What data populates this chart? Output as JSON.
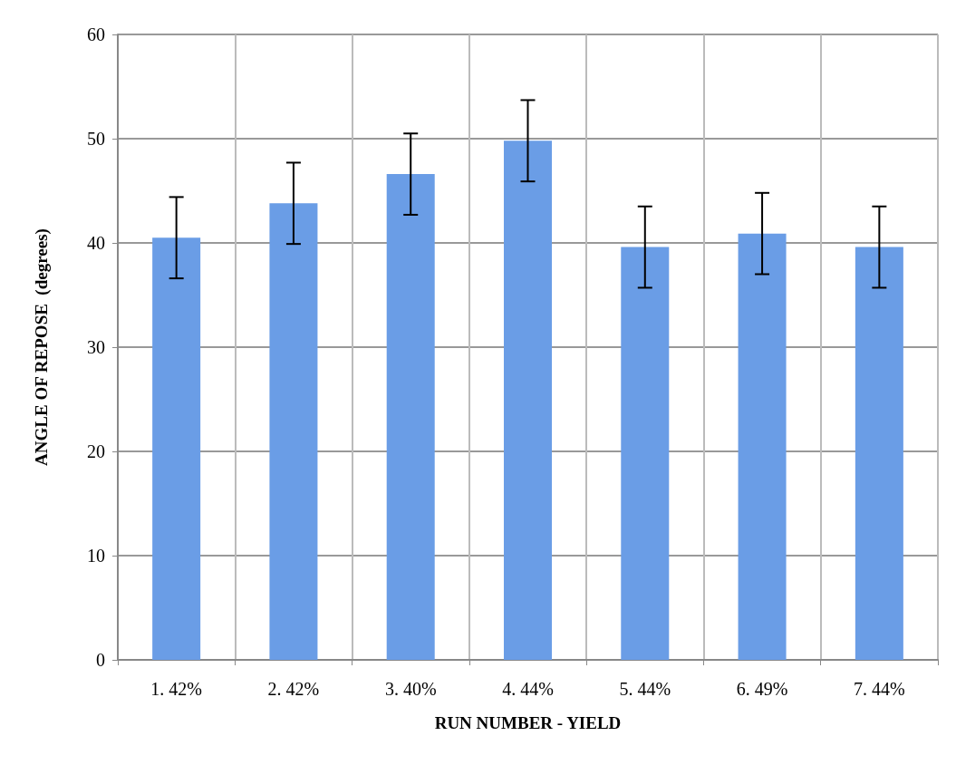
{
  "chart_data": {
    "type": "bar",
    "xlabel": "RUN NUMBER - YIELD",
    "ylabel": "ANGLE OF REPOSE  (degrees)",
    "categories": [
      "1. 42%",
      "2. 42%",
      "3. 40%",
      "4. 44%",
      "5. 44%",
      "6. 49%",
      "7. 44%"
    ],
    "values": [
      40.5,
      43.8,
      46.6,
      49.8,
      39.6,
      40.9,
      39.6
    ],
    "errors": [
      3.9,
      3.9,
      3.9,
      3.9,
      3.9,
      3.9,
      3.9
    ],
    "color": "#6a9de6",
    "ylim": [
      0,
      60
    ],
    "yticks": [
      0,
      10,
      20,
      30,
      40,
      50,
      60
    ],
    "grid": true
  }
}
